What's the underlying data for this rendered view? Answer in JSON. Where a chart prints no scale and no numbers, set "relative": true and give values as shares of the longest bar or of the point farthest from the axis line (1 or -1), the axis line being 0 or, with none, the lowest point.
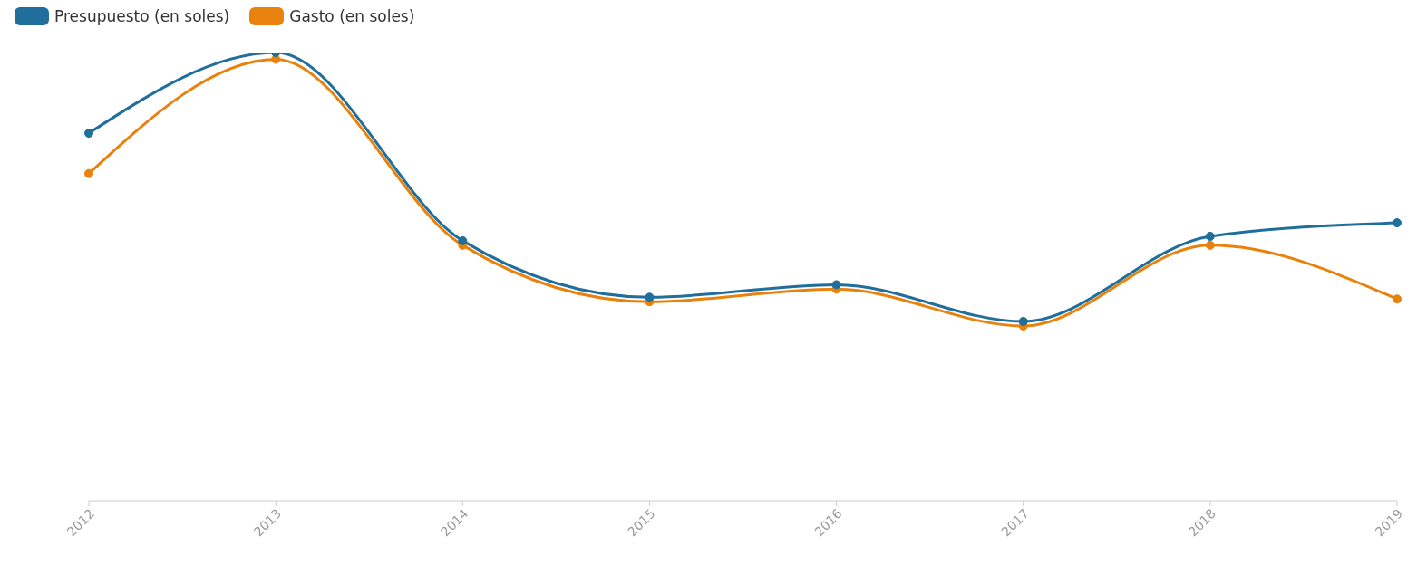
{
  "chart_data": {
    "type": "line",
    "relative": true,
    "categories": [
      "2012",
      "2013",
      "2014",
      "2015",
      "2016",
      "2017",
      "2018",
      "2019"
    ],
    "series": [
      {
        "name": "Presupuesto (en soles)",
        "color": "#1f6e9c",
        "values": [
          0.82,
          1,
          0.58,
          0.454,
          0.482,
          0.4,
          0.59,
          0.62
        ]
      },
      {
        "name": "Gasto (en soles)",
        "color": "#e8820c",
        "values": [
          0.73,
          0.985,
          0.57,
          0.444,
          0.472,
          0.39,
          0.57,
          0.45
        ]
      }
    ],
    "legend": "top left",
    "marker": "circle",
    "line_style": "solid"
  }
}
